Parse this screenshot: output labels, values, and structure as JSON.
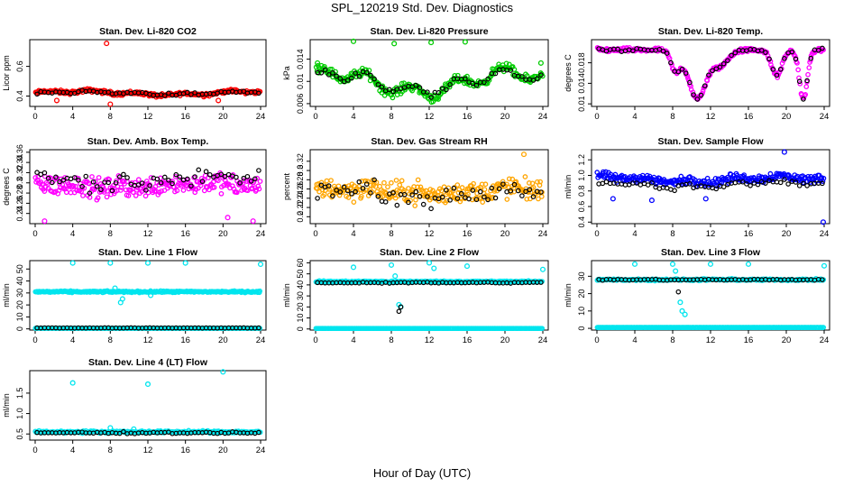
{
  "page": {
    "title": "SPL_120219  Std. Dev. Diagnostics",
    "xlabel": "Hour of Day (UTC)"
  },
  "chart_data": [
    {
      "type": "scatter",
      "title": "Stan. Dev. Li-820 CO2",
      "ylabel": "Licor ppm",
      "color": "#ff0000",
      "xlim": [
        0,
        24
      ],
      "xticks": [
        0,
        4,
        8,
        12,
        16,
        20,
        24
      ],
      "ylim": [
        0.33,
        0.78
      ],
      "yticks": [
        0.4,
        0.6
      ],
      "base": "wave",
      "base_params": [
        0.42,
        0.012,
        0.0
      ],
      "spread": 0.018,
      "outliers": [
        [
          7.6,
          0.755
        ],
        [
          8.0,
          0.345
        ],
        [
          2.3,
          0.37
        ],
        [
          19.5,
          0.37
        ]
      ],
      "black": "wave",
      "black_params": [
        0.42,
        0.008,
        0.0
      ],
      "black_spread": 0.012
    },
    {
      "type": "scatter",
      "title": "Stan. Dev. Li-820 Pressure",
      "ylabel": "kPa",
      "color": "#00cc00",
      "xlim": [
        0,
        24
      ],
      "xticks": [
        0,
        4,
        8,
        12,
        16,
        20,
        24
      ],
      "ylim": [
        0.0055,
        0.0175
      ],
      "yticks": [
        0.006,
        0.01,
        0.014
      ],
      "base": "wave",
      "base_params": [
        0.0098,
        0.0018,
        1.0
      ],
      "spread": 0.0012,
      "outliers": [
        [
          4.0,
          0.0172
        ],
        [
          8.3,
          0.0168
        ],
        [
          12.2,
          0.017
        ],
        [
          15.8,
          0.0171
        ],
        [
          0.2,
          0.0133
        ],
        [
          23.8,
          0.0133
        ]
      ],
      "black": "wave",
      "black_params": [
        0.0098,
        0.0015,
        1.0
      ],
      "black_spread": 0.0008
    },
    {
      "type": "scatter",
      "title": "Stan. Dev. Li-820 Temp.",
      "ylabel": "degrees C",
      "color": "#ff00ff",
      "xlim": [
        0,
        24
      ],
      "xticks": [
        0,
        4,
        8,
        12,
        16,
        20,
        24
      ],
      "ylim": [
        0.0095,
        0.0225
      ],
      "yticks": [
        0.01,
        0.014,
        0.018
      ],
      "base": "temp",
      "base_params": [
        0.0205,
        0.0,
        0.0
      ],
      "spread": 0.0006,
      "outliers": [],
      "black": "temp",
      "black_params": [
        0.0205,
        0.0,
        0.0
      ],
      "black_spread": 0.0004
    },
    {
      "type": "scatter",
      "title": "Stan. Dev. Amb. Box Temp.",
      "ylabel": "degrees C",
      "color": "#ff00ff",
      "xlim": [
        0,
        24
      ],
      "xticks": [
        0,
        4,
        8,
        12,
        16,
        20,
        24
      ],
      "ylim": [
        0.22,
        0.365
      ],
      "yticks": [
        0.24,
        0.26,
        0.28,
        0.3,
        0.32,
        0.34,
        0.36
      ],
      "base": "wave",
      "base_params": [
        0.295,
        0.005,
        2.0
      ],
      "spread": 0.03,
      "outliers": [
        [
          1.0,
          0.225
        ],
        [
          23.2,
          0.225
        ],
        [
          20.5,
          0.232
        ]
      ],
      "black": "wave",
      "black_params": [
        0.305,
        0.008,
        2.0
      ],
      "black_spread": 0.025
    },
    {
      "type": "scatter",
      "title": "Stan. Dev. Gas Stream RH",
      "ylabel": "percent",
      "color": "#ffa500",
      "xlim": [
        0,
        24
      ],
      "xticks": [
        0,
        4,
        8,
        12,
        16,
        20,
        24
      ],
      "ylim": [
        0.185,
        0.345
      ],
      "yticks": [
        0.2,
        0.22,
        0.24,
        0.26,
        0.28,
        0.3,
        0.32
      ],
      "base": "wave",
      "base_params": [
        0.255,
        0.006,
        0.5
      ],
      "spread": 0.035,
      "outliers": [
        [
          22.0,
          0.335
        ]
      ],
      "black": "wave",
      "black_params": [
        0.25,
        0.01,
        0.5
      ],
      "black_spread": 0.025
    },
    {
      "type": "scatter",
      "title": "Stan. Dev. Sample Flow",
      "ylabel": "ml/min",
      "color": "#0000ff",
      "xlim": [
        0,
        24
      ],
      "xticks": [
        0,
        4,
        8,
        12,
        16,
        20,
        24
      ],
      "ylim": [
        0.38,
        1.33
      ],
      "yticks": [
        0.4,
        0.6,
        0.8,
        1.0,
        1.2
      ],
      "base": "wave",
      "base_params": [
        0.95,
        0.03,
        1.5
      ],
      "spread": 0.08,
      "outliers": [
        [
          19.8,
          1.3
        ],
        [
          23.9,
          0.4
        ],
        [
          1.7,
          0.7
        ],
        [
          5.8,
          0.68
        ],
        [
          11.5,
          0.7
        ]
      ],
      "black": "wave",
      "black_params": [
        0.88,
        0.03,
        1.5
      ],
      "black_spread": 0.05
    },
    {
      "type": "scatter",
      "title": "Stan. Dev. Line 1 Flow",
      "ylabel": "ml/min",
      "color": "#00e5ee",
      "xlim": [
        0,
        24
      ],
      "xticks": [
        0,
        4,
        8,
        12,
        16,
        20,
        24
      ],
      "ylim": [
        -1,
        57
      ],
      "yticks": [
        0,
        10,
        20,
        30,
        40,
        50
      ],
      "base": "flat",
      "base_params": [
        31,
        0.0,
        0.0
      ],
      "spread": 1.0,
      "floor": 0.5,
      "outliers": [
        [
          4.0,
          55
        ],
        [
          8.0,
          55
        ],
        [
          12.0,
          55
        ],
        [
          16.0,
          55
        ],
        [
          24.0,
          54
        ],
        [
          9.1,
          22
        ],
        [
          9.3,
          25
        ],
        [
          8.5,
          34
        ],
        [
          12.3,
          28
        ]
      ],
      "black": "flat",
      "black_params": [
        0.8,
        0.0,
        0.0
      ],
      "black_spread": 0.2
    },
    {
      "type": "scatter",
      "title": "Stan. Dev. Line 2 Flow",
      "ylabel": "ml/min",
      "color": "#00e5ee",
      "xlim": [
        0,
        24
      ],
      "xticks": [
        0,
        4,
        8,
        12,
        16,
        20,
        24
      ],
      "ylim": [
        -1,
        62
      ],
      "yticks": [
        0,
        10,
        20,
        30,
        40,
        50,
        60
      ],
      "base": "flat",
      "base_params": [
        43,
        0.0,
        0.0
      ],
      "spread": 1.0,
      "floor": 0.5,
      "outliers": [
        [
          4.0,
          56
        ],
        [
          8.0,
          58
        ],
        [
          12.0,
          60
        ],
        [
          12.5,
          55
        ],
        [
          8.8,
          22
        ],
        [
          9.0,
          20
        ],
        [
          16.0,
          57
        ],
        [
          24.0,
          54
        ],
        [
          8.4,
          48
        ]
      ],
      "black": "flat",
      "black_params": [
        42,
        0.0,
        0.0
      ],
      "black_spread": 0.8,
      "black_outliers": [
        [
          8.8,
          16
        ],
        [
          9.0,
          20
        ]
      ]
    },
    {
      "type": "scatter",
      "title": "Stan. Dev. Line 3 Flow",
      "ylabel": "ml/min",
      "color": "#00e5ee",
      "xlim": [
        0,
        24
      ],
      "xticks": [
        0,
        4,
        8,
        12,
        16,
        20,
        24
      ],
      "ylim": [
        -1,
        39
      ],
      "yticks": [
        0,
        10,
        20,
        30
      ],
      "base": "flat",
      "base_params": [
        28,
        0.0,
        0.0
      ],
      "spread": 0.8,
      "floor": 0.5,
      "outliers": [
        [
          4.0,
          37
        ],
        [
          8.0,
          37
        ],
        [
          12.0,
          37
        ],
        [
          8.3,
          33
        ],
        [
          8.8,
          15
        ],
        [
          9.0,
          10
        ],
        [
          9.3,
          8
        ],
        [
          16.0,
          37
        ],
        [
          24.0,
          36
        ]
      ],
      "black": "flat",
      "black_params": [
        28,
        0.0,
        0.0
      ],
      "black_spread": 0.5,
      "black_outliers": [
        [
          8.6,
          21
        ]
      ]
    },
    {
      "type": "scatter",
      "title": "Stan. Dev. Line 4 (LT) Flow",
      "ylabel": "ml/min",
      "color": "#00e5ee",
      "xlim": [
        0,
        24
      ],
      "xticks": [
        0,
        4,
        8,
        12,
        16,
        20,
        24
      ],
      "ylim": [
        0.35,
        2.05
      ],
      "yticks": [
        0.5,
        1.0,
        1.5
      ],
      "base": "flat",
      "base_params": [
        0.55,
        0.0,
        0.0
      ],
      "spread": 0.04,
      "outliers": [
        [
          4.0,
          1.75
        ],
        [
          12.0,
          1.72
        ],
        [
          20.0,
          2.02
        ],
        [
          8.0,
          0.65
        ],
        [
          10.5,
          0.62
        ]
      ],
      "black": "flat",
      "black_params": [
        0.53,
        0.0,
        0.0
      ],
      "black_spread": 0.03
    }
  ]
}
